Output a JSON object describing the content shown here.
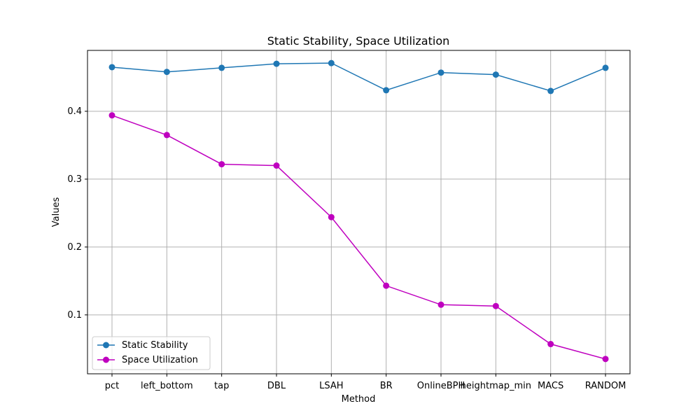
{
  "chart_data": {
    "type": "line",
    "title": "Static Stability, Space Utilization",
    "xlabel": "Method",
    "ylabel": "Values",
    "categories": [
      "pct",
      "left_bottom",
      "tap",
      "DBL",
      "LSAH",
      "BR",
      "OnlineBPH",
      "heightmap_min",
      "MACS",
      "RANDOM"
    ],
    "series": [
      {
        "name": "Static Stability",
        "color": "#1f77b4",
        "values": [
          0.465,
          0.458,
          0.464,
          0.47,
          0.471,
          0.431,
          0.457,
          0.454,
          0.43,
          0.464
        ]
      },
      {
        "name": "Space Utilization",
        "color": "#bf00bf",
        "values": [
          0.394,
          0.365,
          0.322,
          0.32,
          0.244,
          0.143,
          0.115,
          0.113,
          0.057,
          0.035
        ]
      }
    ],
    "ylim": [
      0.0132,
      0.4897
    ],
    "yticks": [
      0.1,
      0.2,
      0.3,
      0.4
    ],
    "ytick_labels": [
      "0.1",
      "0.2",
      "0.3",
      "0.4"
    ],
    "grid": true,
    "legend_position": "lower-left"
  }
}
